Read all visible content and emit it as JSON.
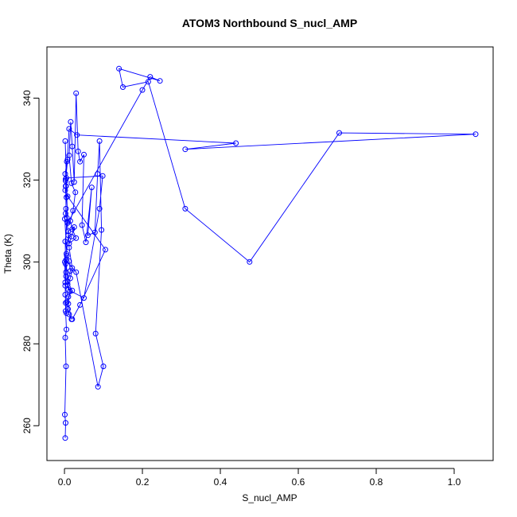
{
  "chart_data": {
    "type": "scatter",
    "title": "ATOM3 Northbound S_nucl_AMP",
    "xlabel": "S_nucl_AMP",
    "ylabel": "Theta (K)",
    "xlim": [
      -0.045,
      1.1
    ],
    "ylim": [
      251.5,
      352.5
    ],
    "xticks": [
      "0.0",
      "0.2",
      "0.4",
      "0.6",
      "0.8",
      "1.0"
    ],
    "yticks": [
      "260",
      "280",
      "300",
      "320",
      "340"
    ],
    "style": "points connected by lines (type='o')",
    "color": "#0000ff",
    "grid": false,
    "x": [
      0.002,
      0.003,
      0.001,
      0.004,
      0.002,
      0.005,
      0.003,
      0.002,
      0.004,
      0.006,
      0.001,
      0.003,
      0.005,
      0.002,
      0.004,
      0.003,
      0.002,
      0.006,
      0.008,
      0.003,
      0.004,
      0.006,
      0.001,
      0.002,
      0.003,
      0.005,
      0.002,
      0.004,
      0.003,
      0.002,
      0.007,
      0.01,
      0.005,
      0.012,
      0.015,
      0.008,
      0.02,
      0.01,
      0.006,
      0.009,
      0.012,
      0.018,
      0.01,
      0.014,
      0.008,
      0.015,
      0.02,
      0.012,
      0.01,
      0.025,
      0.018,
      0.012,
      0.03,
      0.02,
      0.015,
      0.022,
      0.028,
      0.018,
      0.012,
      0.016,
      0.02,
      0.025,
      0.03,
      0.035,
      0.04,
      0.05,
      0.045,
      0.055,
      0.07,
      0.06,
      0.078,
      0.085,
      0.09,
      0.095,
      0.08,
      0.1,
      0.086,
      0.03,
      0.004,
      0.01,
      0.05,
      0.09,
      0.098,
      0.005,
      0.002,
      0.008,
      0.2,
      0.22,
      0.245,
      0.14,
      0.15,
      0.215,
      0.31,
      0.475,
      0.705,
      1.055,
      0.31,
      0.44,
      0.032,
      0.012,
      0.003,
      0.008,
      0.105,
      0.04,
      0.02
    ],
    "y": [
      257,
      260.7,
      262.7,
      274.5,
      281.5,
      283.5,
      288,
      294.2,
      297.5,
      301.5,
      310.5,
      311.8,
      315.8,
      317.5,
      318.5,
      320.2,
      321.5,
      324.5,
      325,
      319.8,
      313,
      310.8,
      300,
      295,
      290,
      287.5,
      292,
      296.5,
      299.5,
      305,
      309.8,
      306.5,
      302,
      300.2,
      297.8,
      295.2,
      293,
      291.5,
      290.2,
      288.5,
      287.2,
      286,
      289.8,
      292.8,
      294.5,
      296,
      298.5,
      303.5,
      307.5,
      308.5,
      306.2,
      304.5,
      305.8,
      308,
      310,
      312.5,
      317,
      319.2,
      326,
      334.2,
      328.2,
      319.5,
      341.2,
      327,
      324.5,
      326.2,
      309,
      304.8,
      318.2,
      306.5,
      307.2,
      321.5,
      329.5,
      307.8,
      282.5,
      274.5,
      269.5,
      297.5,
      300.5,
      293.2,
      291.2,
      313,
      321,
      320.5,
      329.5,
      309.5,
      342,
      345.2,
      344.2,
      347.2,
      342.7,
      344,
      313,
      300,
      331.5,
      331.2,
      327.5,
      329,
      331,
      332.5,
      318.5,
      316,
      303,
      289.5,
      286
    ]
  }
}
